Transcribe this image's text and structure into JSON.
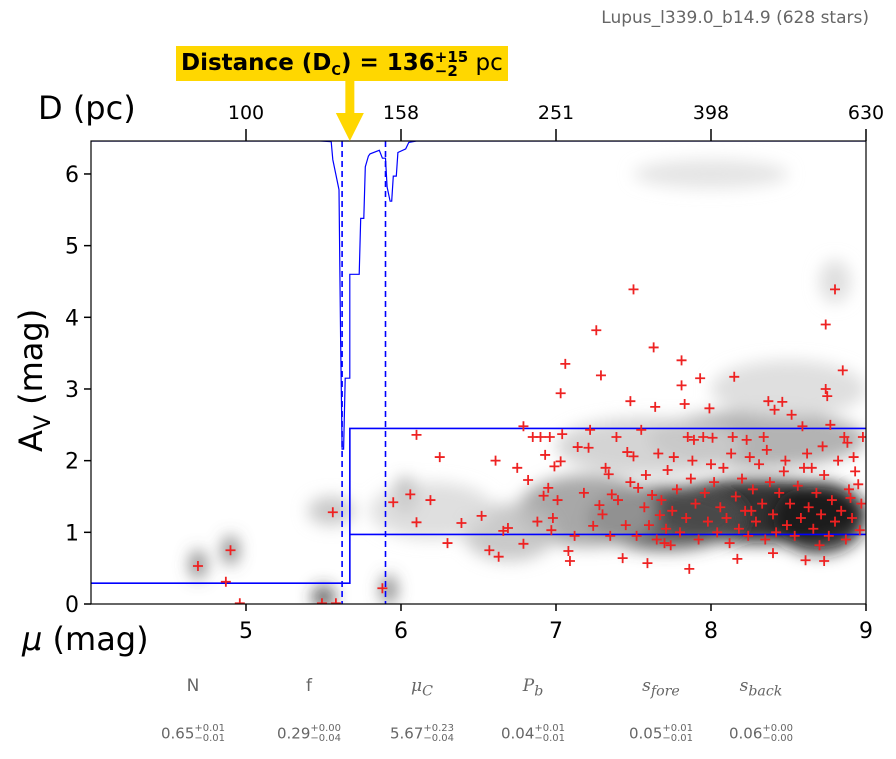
{
  "chart_data": {
    "type": "scatter",
    "title": "Lupus_l339.0_b14.9 (628 stars)",
    "xlabel": "μ (mag)",
    "ylabel_main": "A",
    "ylabel_sub": "V",
    "ylabel_unit": "(mag)",
    "top_xlabel": "D (pc)",
    "xlim": [
      4,
      9
    ],
    "ylim": [
      0,
      6.46
    ],
    "x_ticks": [
      "5",
      "6",
      "7",
      "8",
      "9"
    ],
    "x_tick_values": [
      5,
      6,
      7,
      8,
      9
    ],
    "y_ticks": [
      "0",
      "1",
      "2",
      "3",
      "4",
      "5",
      "6"
    ],
    "y_tick_values": [
      0,
      1,
      2,
      3,
      4,
      5,
      6
    ],
    "top_ticks": [
      "100",
      "158",
      "251",
      "398",
      "630"
    ],
    "top_tick_mu": [
      5,
      6,
      7,
      8,
      9
    ],
    "distance_banner": {
      "label": "Distance (D",
      "sub": "C",
      "eq": ") = 136",
      "plus": "+15",
      "minus": "−2",
      "unit": " pc",
      "mu": 5.67,
      "color": "#FFD700"
    },
    "model": {
      "mu_cloud": 5.67,
      "A_fore": 0.29,
      "A_back_low": 0.97,
      "A_back_high": 2.45,
      "color": "#0000FF"
    },
    "dashed_lines_mu": [
      5.62,
      5.9
    ],
    "distance_pdf_curve": [
      [
        5.48,
        6.46
      ],
      [
        5.55,
        6.45
      ],
      [
        5.56,
        6.2
      ],
      [
        5.6,
        5.78
      ],
      [
        5.61,
        3.7
      ],
      [
        5.62,
        2.16
      ],
      [
        5.63,
        2.16
      ],
      [
        5.64,
        3.15
      ],
      [
        5.66,
        3.15
      ],
      [
        5.67,
        3.15
      ],
      [
        5.67,
        4.6
      ],
      [
        5.73,
        4.6
      ],
      [
        5.74,
        5.38
      ],
      [
        5.76,
        5.38
      ],
      [
        5.77,
        6.1
      ],
      [
        5.79,
        6.25
      ],
      [
        5.8,
        6.28
      ],
      [
        5.86,
        6.33
      ],
      [
        5.88,
        6.22
      ],
      [
        5.9,
        6.22
      ],
      [
        5.91,
        5.82
      ],
      [
        5.93,
        5.62
      ],
      [
        5.94,
        5.62
      ],
      [
        5.95,
        5.97
      ],
      [
        5.97,
        5.97
      ],
      [
        5.98,
        6.3
      ],
      [
        6.03,
        6.35
      ],
      [
        6.05,
        6.44
      ],
      [
        6.1,
        6.46
      ]
    ],
    "density_blobs": [
      [
        4.69,
        0.55,
        0.05,
        0.2,
        0.6
      ],
      [
        4.9,
        0.75,
        0.05,
        0.2,
        0.6
      ],
      [
        5.5,
        0.1,
        0.07,
        0.15,
        0.8
      ],
      [
        5.92,
        0.2,
        0.05,
        0.2,
        0.6
      ],
      [
        6.03,
        1.5,
        0.08,
        0.25,
        0.6
      ],
      [
        5.55,
        1.3,
        0.15,
        0.2,
        0.25
      ],
      [
        8.3,
        1.3,
        0.7,
        0.45,
        0.95
      ],
      [
        7.7,
        1.2,
        0.5,
        0.45,
        0.7
      ],
      [
        8.7,
        1.2,
        0.3,
        0.5,
        0.9
      ],
      [
        7.2,
        1.3,
        0.45,
        0.5,
        0.4
      ],
      [
        6.7,
        1.0,
        0.3,
        0.4,
        0.25
      ],
      [
        8.3,
        2.3,
        0.7,
        0.4,
        0.35
      ],
      [
        7.6,
        2.2,
        0.6,
        0.4,
        0.2
      ],
      [
        8.5,
        3.0,
        0.5,
        0.4,
        0.15
      ],
      [
        8.8,
        4.5,
        0.1,
        0.3,
        0.15
      ],
      [
        8.0,
        6.0,
        0.5,
        0.2,
        0.12
      ],
      [
        6.2,
        1.3,
        0.4,
        0.4,
        0.15
      ]
    ],
    "points": [
      [
        4.69,
        0.53
      ],
      [
        4.9,
        0.75
      ],
      [
        4.87,
        0.31
      ],
      [
        4.96,
        0.01
      ],
      [
        5.56,
        1.28
      ],
      [
        5.49,
        0.01
      ],
      [
        5.58,
        0.01
      ],
      [
        5.88,
        0.22
      ],
      [
        5.95,
        1.42
      ],
      [
        6.06,
        1.53
      ],
      [
        6.1,
        2.36
      ],
      [
        6.1,
        1.14
      ],
      [
        6.19,
        1.45
      ],
      [
        6.25,
        2.05
      ],
      [
        6.3,
        0.85
      ],
      [
        6.39,
        1.13
      ],
      [
        6.52,
        1.23
      ],
      [
        6.57,
        0.75
      ],
      [
        6.61,
        2.0
      ],
      [
        6.63,
        0.66
      ],
      [
        6.66,
        1.02
      ],
      [
        6.69,
        1.06
      ],
      [
        6.75,
        1.9
      ],
      [
        6.79,
        0.84
      ],
      [
        6.79,
        2.48
      ],
      [
        6.82,
        1.73
      ],
      [
        6.85,
        2.33
      ],
      [
        6.9,
        2.33
      ],
      [
        6.96,
        2.33
      ],
      [
        6.93,
        2.08
      ],
      [
        6.92,
        1.51
      ],
      [
        6.95,
        1.62
      ],
      [
        6.97,
        1.03
      ],
      [
        6.98,
        1.2
      ],
      [
        6.99,
        1.92
      ],
      [
        7.01,
        1.45
      ],
      [
        7.03,
        2.94
      ],
      [
        7.03,
        1.99
      ],
      [
        7.04,
        2.37
      ],
      [
        7.06,
        3.35
      ],
      [
        7.08,
        0.74
      ],
      [
        7.09,
        0.6
      ],
      [
        7.14,
        2.19
      ],
      [
        7.21,
        2.18
      ],
      [
        7.22,
        2.43
      ],
      [
        7.24,
        1.09
      ],
      [
        7.26,
        3.82
      ],
      [
        7.28,
        1.38
      ],
      [
        7.29,
        3.19
      ],
      [
        7.32,
        1.9
      ],
      [
        7.34,
        1.81
      ],
      [
        7.36,
        1.53
      ],
      [
        7.39,
        2.33
      ],
      [
        7.43,
        0.64
      ],
      [
        7.46,
        2.12
      ],
      [
        7.48,
        2.83
      ],
      [
        7.5,
        4.39
      ],
      [
        7.5,
        2.06
      ],
      [
        7.53,
        1.62
      ],
      [
        7.55,
        2.43
      ],
      [
        7.59,
        0.57
      ],
      [
        7.62,
        1.52
      ],
      [
        7.63,
        3.58
      ],
      [
        7.64,
        2.75
      ],
      [
        7.67,
        1.24
      ],
      [
        7.7,
        0.85
      ],
      [
        7.72,
        1.87
      ],
      [
        7.74,
        0.82
      ],
      [
        7.81,
        3.4
      ],
      [
        7.81,
        3.05
      ],
      [
        7.83,
        2.79
      ],
      [
        7.85,
        2.33
      ],
      [
        7.86,
        0.49
      ],
      [
        7.89,
        2.29
      ],
      [
        7.93,
        3.15
      ],
      [
        7.95,
        2.33
      ],
      [
        7.99,
        2.73
      ],
      [
        8.01,
        2.32
      ],
      [
        8.15,
        3.17
      ],
      [
        8.14,
        2.33
      ],
      [
        8.17,
        0.63
      ],
      [
        8.23,
        2.29
      ],
      [
        8.26,
        1.3
      ],
      [
        8.34,
        2.33
      ],
      [
        8.37,
        2.83
      ],
      [
        8.41,
        2.71
      ],
      [
        8.46,
        2.82
      ],
      [
        8.52,
        2.64
      ],
      [
        8.59,
        2.48
      ],
      [
        8.65,
        1.9
      ],
      [
        8.74,
        3.9
      ],
      [
        8.74,
        3.0
      ],
      [
        8.75,
        2.9
      ],
      [
        8.77,
        2.5
      ],
      [
        8.8,
        4.39
      ],
      [
        8.85,
        3.26
      ],
      [
        8.86,
        2.33
      ],
      [
        8.9,
        1.48
      ],
      [
        8.92,
        2.05
      ],
      [
        8.95,
        1.67
      ],
      [
        8.98,
        2.33
      ],
      [
        8.96,
        1.03
      ],
      [
        8.73,
        0.6
      ],
      [
        8.7,
        0.82
      ],
      [
        8.61,
        0.61
      ],
      [
        8.4,
        0.71
      ],
      [
        7.45,
        1.1
      ],
      [
        7.52,
        0.95
      ],
      [
        7.57,
        1.35
      ],
      [
        7.6,
        1.1
      ],
      [
        7.65,
        0.9
      ],
      [
        7.68,
        1.45
      ],
      [
        7.71,
        1.05
      ],
      [
        7.75,
        1.3
      ],
      [
        7.78,
        1.6
      ],
      [
        7.8,
        1.0
      ],
      [
        7.84,
        1.2
      ],
      [
        7.87,
        1.75
      ],
      [
        7.9,
        1.4
      ],
      [
        7.92,
        0.9
      ],
      [
        7.96,
        1.55
      ],
      [
        7.98,
        1.15
      ],
      [
        8.02,
        1.7
      ],
      [
        8.04,
        1.0
      ],
      [
        8.06,
        1.35
      ],
      [
        8.08,
        1.9
      ],
      [
        8.1,
        1.2
      ],
      [
        8.12,
        0.85
      ],
      [
        8.16,
        1.5
      ],
      [
        8.18,
        1.05
      ],
      [
        8.2,
        1.75
      ],
      [
        8.22,
        1.3
      ],
      [
        8.24,
        0.95
      ],
      [
        8.27,
        1.6
      ],
      [
        8.29,
        1.15
      ],
      [
        8.31,
        1.95
      ],
      [
        8.33,
        1.4
      ],
      [
        8.35,
        0.9
      ],
      [
        8.38,
        1.7
      ],
      [
        8.4,
        1.25
      ],
      [
        8.42,
        1.0
      ],
      [
        8.44,
        1.55
      ],
      [
        8.47,
        1.85
      ],
      [
        8.49,
        1.1
      ],
      [
        8.51,
        1.4
      ],
      [
        8.54,
        0.95
      ],
      [
        8.56,
        1.65
      ],
      [
        8.58,
        1.2
      ],
      [
        8.6,
        1.9
      ],
      [
        8.63,
        1.35
      ],
      [
        8.66,
        1.05
      ],
      [
        8.68,
        1.55
      ],
      [
        8.71,
        1.25
      ],
      [
        8.73,
        1.8
      ],
      [
        8.76,
        0.95
      ],
      [
        8.78,
        1.45
      ],
      [
        8.8,
        1.15
      ],
      [
        8.82,
        2.0
      ],
      [
        8.84,
        1.3
      ],
      [
        8.87,
        0.9
      ],
      [
        8.89,
        1.6
      ],
      [
        8.91,
        1.2
      ],
      [
        8.93,
        1.85
      ],
      [
        8.97,
        1.4
      ],
      [
        7.3,
        1.25
      ],
      [
        7.35,
        0.95
      ],
      [
        7.4,
        1.45
      ],
      [
        7.18,
        1.55
      ],
      [
        7.12,
        0.95
      ],
      [
        6.88,
        1.15
      ],
      [
        7.48,
        1.7
      ],
      [
        7.58,
        1.8
      ],
      [
        7.66,
        2.1
      ],
      [
        7.76,
        2.05
      ],
      [
        7.88,
        2.0
      ],
      [
        8.0,
        1.95
      ],
      [
        8.13,
        2.1
      ],
      [
        8.25,
        2.05
      ],
      [
        8.36,
        2.15
      ],
      [
        8.48,
        2.0
      ],
      [
        8.62,
        2.1
      ],
      [
        8.72,
        2.2
      ],
      [
        8.88,
        2.25
      ]
    ],
    "point_color": "#EE2222"
  },
  "params": [
    {
      "name": "N",
      "value": "0.65",
      "plus": "+0.01",
      "minus": "−0.01"
    },
    {
      "name": "f",
      "value": "0.29",
      "plus": "+0.00",
      "minus": "−0.04"
    },
    {
      "name": "μ",
      "name_sub": "C",
      "value": "5.67",
      "plus": "+0.23",
      "minus": "−0.04"
    },
    {
      "name": "P",
      "name_sub": "b",
      "value": "0.04",
      "plus": "+0.01",
      "minus": "−0.01"
    },
    {
      "name": "s",
      "name_sub": "fore",
      "value": "0.05",
      "plus": "+0.01",
      "minus": "−0.01"
    },
    {
      "name": "s",
      "name_sub": "back",
      "value": "0.06",
      "plus": "+0.00",
      "minus": "−0.00"
    }
  ]
}
